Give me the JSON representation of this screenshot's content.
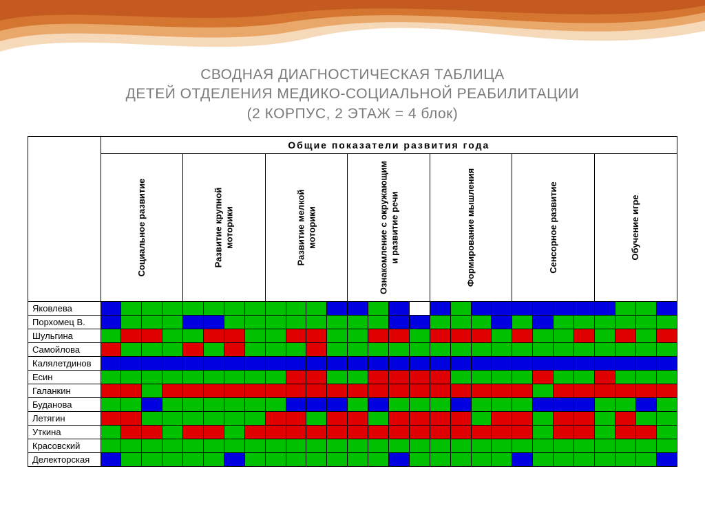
{
  "title": {
    "line1": "СВОДНАЯ ДИАГНОСТИЧЕСКАЯ ТАБЛИЦА",
    "line2": "ДЕТЕЙ ОТДЕЛЕНИЯ МЕДИКО-СОЦИАЛЬНОЙ РЕАБИЛИТАЦИИ",
    "line3": "(2 КОРПУС, 2 ЭТАЖ = 4 блок)"
  },
  "top_header": "Общие показатели развития   года",
  "columns": [
    "Социальное развитие",
    "Развитие крупной моторики",
    "Развитие мелкой моторики",
    "Ознакомление с окружающим и развитие речи",
    "Формирование мышления",
    "Сенсорное развитие",
    "Обучение игре"
  ],
  "palette": {
    "g": "#00c000",
    "b": "#0000e0",
    "r": "#e00000",
    "w": "#ffffff"
  },
  "wave_colors": {
    "c1": "#f6d9b8",
    "c2": "#e9a76a",
    "c3": "#d47530",
    "c4": "#c45a1f"
  },
  "rows": [
    {
      "name": "Яковлева",
      "cells": [
        [
          "b",
          "g",
          "g",
          "g"
        ],
        [
          "g",
          "g",
          "g",
          "g"
        ],
        [
          "g",
          "g",
          "g",
          "b"
        ],
        [
          "b",
          "g",
          "b",
          "w"
        ],
        [
          "b",
          "g",
          "b",
          "b"
        ],
        [
          "b",
          "b",
          "b",
          "b"
        ],
        [
          "b",
          "g",
          "g",
          "b"
        ]
      ]
    },
    {
      "name": "Порхомец В.",
      "cells": [
        [
          "b",
          "g",
          "g",
          "g"
        ],
        [
          "b",
          "b",
          "g",
          "g"
        ],
        [
          "g",
          "g",
          "g",
          "g"
        ],
        [
          "g",
          "g",
          "b",
          "b"
        ],
        [
          "g",
          "g",
          "g",
          "b"
        ],
        [
          "g",
          "b",
          "g",
          "g"
        ],
        [
          "g",
          "g",
          "g",
          "g"
        ]
      ]
    },
    {
      "name": "Шульгина",
      "cells": [
        [
          "g",
          "r",
          "r",
          "g"
        ],
        [
          "g",
          "r",
          "r",
          "g"
        ],
        [
          "g",
          "r",
          "r",
          "g"
        ],
        [
          "g",
          "r",
          "r",
          "g"
        ],
        [
          "r",
          "r",
          "r",
          "g"
        ],
        [
          "r",
          "g",
          "g",
          "r"
        ],
        [
          "g",
          "r",
          "g",
          "r"
        ]
      ]
    },
    {
      "name": "Самойлова",
      "cells": [
        [
          "r",
          "g",
          "g",
          "g"
        ],
        [
          "r",
          "g",
          "r",
          "g"
        ],
        [
          "g",
          "g",
          "r",
          "g"
        ],
        [
          "g",
          "g",
          "g",
          "g"
        ],
        [
          "g",
          "g",
          "g",
          "g"
        ],
        [
          "g",
          "g",
          "g",
          "g"
        ],
        [
          "g",
          "g",
          "g",
          "g"
        ]
      ]
    },
    {
      "name": "Калялетдинов",
      "cells": [
        [
          "b",
          "b",
          "b",
          "b"
        ],
        [
          "b",
          "b",
          "b",
          "b"
        ],
        [
          "b",
          "b",
          "b",
          "b"
        ],
        [
          "b",
          "b",
          "b",
          "b"
        ],
        [
          "b",
          "b",
          "b",
          "b"
        ],
        [
          "b",
          "b",
          "b",
          "b"
        ],
        [
          "b",
          "b",
          "b",
          "b"
        ]
      ]
    },
    {
      "name": "Есин",
      "cells": [
        [
          "g",
          "g",
          "g",
          "g"
        ],
        [
          "g",
          "g",
          "g",
          "g"
        ],
        [
          "g",
          "r",
          "r",
          "g"
        ],
        [
          "g",
          "r",
          "r",
          "r"
        ],
        [
          "r",
          "g",
          "g",
          "g"
        ],
        [
          "g",
          "r",
          "g",
          "g"
        ],
        [
          "r",
          "g",
          "g",
          "g"
        ]
      ]
    },
    {
      "name": "Галанкин",
      "cells": [
        [
          "r",
          "r",
          "g",
          "r"
        ],
        [
          "r",
          "r",
          "r",
          "r"
        ],
        [
          "r",
          "r",
          "r",
          "r"
        ],
        [
          "r",
          "r",
          "r",
          "r"
        ],
        [
          "r",
          "r",
          "r",
          "r"
        ],
        [
          "r",
          "g",
          "r",
          "r"
        ],
        [
          "r",
          "r",
          "r",
          "r"
        ]
      ]
    },
    {
      "name": "Буданова",
      "cells": [
        [
          "g",
          "g",
          "b",
          "g"
        ],
        [
          "g",
          "g",
          "g",
          "g"
        ],
        [
          "g",
          "b",
          "b",
          "b"
        ],
        [
          "g",
          "b",
          "g",
          "g"
        ],
        [
          "g",
          "b",
          "g",
          "g"
        ],
        [
          "g",
          "b",
          "b",
          "b"
        ],
        [
          "g",
          "g",
          "b",
          "g"
        ]
      ]
    },
    {
      "name": "Летягин",
      "cells": [
        [
          "r",
          "r",
          "g",
          "g"
        ],
        [
          "g",
          "g",
          "g",
          "g"
        ],
        [
          "r",
          "r",
          "g",
          "r"
        ],
        [
          "r",
          "g",
          "r",
          "r"
        ],
        [
          "r",
          "r",
          "g",
          "r"
        ],
        [
          "r",
          "g",
          "r",
          "r"
        ],
        [
          "g",
          "r",
          "g",
          "g"
        ]
      ]
    },
    {
      "name": "Уткина",
      "cells": [
        [
          "g",
          "r",
          "r",
          "g"
        ],
        [
          "r",
          "r",
          "g",
          "r"
        ],
        [
          "r",
          "r",
          "r",
          "r"
        ],
        [
          "r",
          "r",
          "r",
          "r"
        ],
        [
          "r",
          "r",
          "r",
          "r"
        ],
        [
          "r",
          "g",
          "r",
          "r"
        ],
        [
          "g",
          "r",
          "r",
          "g"
        ]
      ]
    },
    {
      "name": "Красовский",
      "cells": [
        [
          "g",
          "g",
          "g",
          "g"
        ],
        [
          "g",
          "g",
          "g",
          "g"
        ],
        [
          "g",
          "g",
          "g",
          "g"
        ],
        [
          "g",
          "g",
          "g",
          "g"
        ],
        [
          "g",
          "g",
          "g",
          "g"
        ],
        [
          "g",
          "g",
          "g",
          "g"
        ],
        [
          "g",
          "g",
          "g",
          "g"
        ]
      ]
    },
    {
      "name": "Делекторская",
      "cells": [
        [
          "b",
          "g",
          "g",
          "g"
        ],
        [
          "g",
          "g",
          "b",
          "g"
        ],
        [
          "g",
          "g",
          "g",
          "g"
        ],
        [
          "g",
          "g",
          "b",
          "g"
        ],
        [
          "g",
          "g",
          "g",
          "g"
        ],
        [
          "b",
          "g",
          "g",
          "g"
        ],
        [
          "g",
          "g",
          "g",
          "b"
        ]
      ]
    }
  ]
}
